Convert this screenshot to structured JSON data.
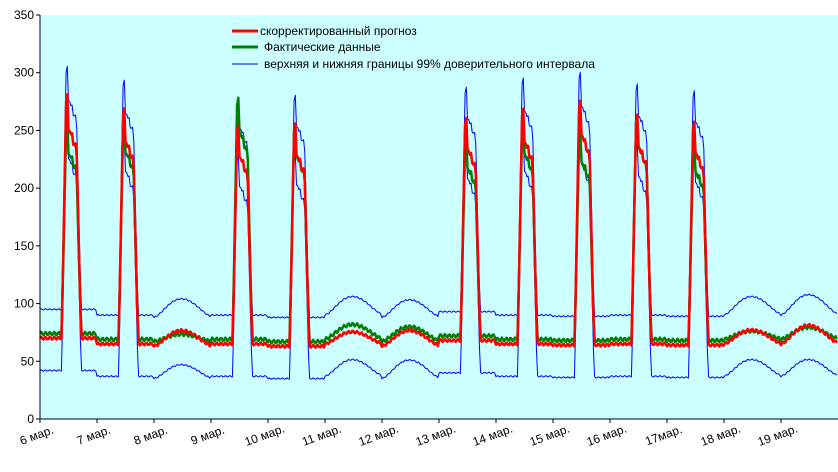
{
  "chart_data": {
    "type": "line",
    "title": "",
    "xlabel": "",
    "ylabel": "",
    "ylim": [
      0,
      350
    ],
    "yticks": [
      0,
      50,
      100,
      150,
      200,
      250,
      300,
      350
    ],
    "xlim": [
      0,
      14
    ],
    "x_tick_labels": [
      "6 мар.",
      "7 мар.",
      "8 мар.",
      "9 мар.",
      "10 мар.",
      "11 мар.",
      "12 мар.",
      "13 мар.",
      "14 мар.",
      "15 мар.",
      "16 мар.",
      "17мар.",
      "18 мар.",
      "19 мар."
    ],
    "grid": false,
    "background_color": "#ccffff",
    "legend_position": "top-center",
    "day_profiles": [
      {
        "day": "6 мар.",
        "kind": "peak",
        "low": 70,
        "forecast_peak": 280,
        "actual_peak": 255,
        "upper_peak": 305,
        "lower_peak": 255
      },
      {
        "day": "7 мар.",
        "kind": "peak",
        "low": 65,
        "forecast_peak": 268,
        "actual_peak": 257,
        "upper_peak": 293,
        "lower_peak": 243
      },
      {
        "day": "8 мар.",
        "kind": "flat",
        "low": 63,
        "forecast_peak": 80,
        "actual_peak": 75,
        "upper_peak": 108,
        "lower_peak": 50
      },
      {
        "day": "9 мар.",
        "kind": "peak",
        "low": 65,
        "forecast_peak": 253,
        "actual_peak": 277,
        "upper_peak": 278,
        "lower_peak": 228
      },
      {
        "day": "10 мар.",
        "kind": "peak",
        "low": 63,
        "forecast_peak": 255,
        "actual_peak": 253,
        "upper_peak": 280,
        "lower_peak": 230
      },
      {
        "day": "11 мар.",
        "kind": "flat",
        "low": 65,
        "forecast_peak": 78,
        "actual_peak": 85,
        "upper_peak": 110,
        "lower_peak": 55
      },
      {
        "day": "12 мар.",
        "kind": "flat",
        "low": 63,
        "forecast_peak": 80,
        "actual_peak": 83,
        "upper_peak": 107,
        "lower_peak": 55
      },
      {
        "day": "13 мар.",
        "kind": "peak",
        "low": 68,
        "forecast_peak": 260,
        "actual_peak": 240,
        "upper_peak": 287,
        "lower_peak": 235
      },
      {
        "day": "14 мар.",
        "kind": "peak",
        "low": 65,
        "forecast_peak": 268,
        "actual_peak": 255,
        "upper_peak": 295,
        "lower_peak": 243
      },
      {
        "day": "15 мар.",
        "kind": "peak",
        "low": 64,
        "forecast_peak": 275,
        "actual_peak": 247,
        "upper_peak": 300,
        "lower_peak": 250
      },
      {
        "day": "16 мар.",
        "kind": "peak",
        "low": 65,
        "forecast_peak": 263,
        "actual_peak": 262,
        "upper_peak": 290,
        "lower_peak": 238
      },
      {
        "day": "17мар.",
        "kind": "peak",
        "low": 64,
        "forecast_peak": 257,
        "actual_peak": 237,
        "upper_peak": 284,
        "lower_peak": 232
      },
      {
        "day": "18 мар.",
        "kind": "flat",
        "low": 65,
        "forecast_peak": 80,
        "actual_peak": 78,
        "upper_peak": 110,
        "lower_peak": 55
      },
      {
        "day": "19 мар.",
        "kind": "flat",
        "low": 65,
        "forecast_peak": 85,
        "actual_peak": 82,
        "upper_peak": 112,
        "lower_peak": 55
      }
    ],
    "series": [
      {
        "name": "скорректированный прогноз",
        "color": "#ff0000"
      },
      {
        "name": "Фактические данные",
        "color": "#008000"
      },
      {
        "name": "верхняя и нижняя границы 99%  доверительного интервала",
        "color": "#0000ff"
      }
    ]
  }
}
